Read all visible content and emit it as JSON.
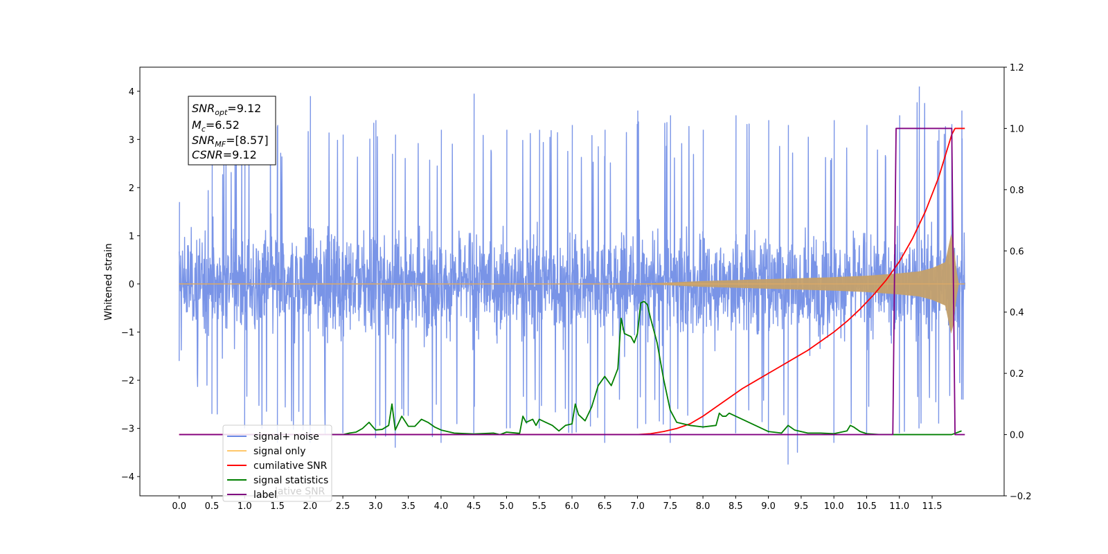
{
  "chart_data": {
    "type": "line",
    "title": "",
    "xlabel": "",
    "ylabel": "Whitened strain",
    "xlim": [
      -0.6,
      12.6
    ],
    "ylim": [
      -4.4,
      4.5
    ],
    "y2lim": [
      -0.2,
      1.2
    ],
    "x_ticks": [
      "0.0",
      "0.5",
      "1.0",
      "1.5",
      "2.0",
      "2.5",
      "3.0",
      "3.5",
      "4.0",
      "4.5",
      "5.0",
      "5.5",
      "6.0",
      "6.5",
      "7.0",
      "7.5",
      "8.0",
      "8.5",
      "9.0",
      "9.5",
      "10.0",
      "10.5",
      "11.0",
      "11.5"
    ],
    "y_ticks": [
      "4",
      "3",
      "2",
      "1",
      "0",
      "−1",
      "−2",
      "−3",
      "−4"
    ],
    "y2_ticks": [
      "1.2",
      "1.0",
      "0.8",
      "0.6",
      "0.4",
      "0.2",
      "0.0",
      "−0.2"
    ],
    "grid": false,
    "legend_position": "lower-left",
    "info_box": {
      "line1_main": "SNR",
      "line1_sub": "opt",
      "line1_value": "=9.12",
      "line2_main": "M",
      "line2_sub": "c",
      "line2_value": "=6.52",
      "line3_main": "SNR",
      "line3_sub": "MF",
      "line3_value": "=[8.57]",
      "line4_main": "CSNR",
      "line4_value": "=9.12"
    },
    "legend": [
      {
        "label": "signal+ noise",
        "color": "#6a88e4"
      },
      {
        "label": "signal only",
        "color": "#ffc76a"
      },
      {
        "label": "cumilative SNR",
        "color": "#ff0000"
      },
      {
        "label": "signal statistics",
        "color": "#007f00"
      },
      {
        "label": "label",
        "color": "#800080"
      }
    ],
    "legend_ghost_text": "lative SNR",
    "series": [
      {
        "name": "signal+ noise",
        "axis": "left",
        "color": "#6a88e4",
        "t_range": [
          0.0,
          12.0
        ],
        "envelope_peaks": [
          [
            0.0,
            1.7,
            -1.6
          ],
          [
            0.5,
            2.6,
            -2.7
          ],
          [
            1.0,
            3.2,
            -3.0
          ],
          [
            1.5,
            3.3,
            -3.3
          ],
          [
            2.0,
            3.9,
            -3.3
          ],
          [
            2.5,
            3.1,
            -3.1
          ],
          [
            3.0,
            3.4,
            -3.2
          ],
          [
            3.3,
            3.1,
            -3.4
          ],
          [
            4.0,
            3.2,
            -3.3
          ],
          [
            4.5,
            3.95,
            -3.1
          ],
          [
            5.0,
            3.2,
            -3.0
          ],
          [
            5.5,
            3.2,
            -3.0
          ],
          [
            6.0,
            3.3,
            -3.1
          ],
          [
            6.5,
            3.2,
            -3.3
          ],
          [
            7.0,
            3.6,
            -3.0
          ],
          [
            7.5,
            3.5,
            -3.3
          ],
          [
            8.0,
            3.2,
            -3.0
          ],
          [
            8.5,
            3.5,
            -3.1
          ],
          [
            9.0,
            3.4,
            -3.1
          ],
          [
            9.3,
            3.3,
            -3.75
          ],
          [
            10.0,
            3.4,
            -3.3
          ],
          [
            10.5,
            3.3,
            -3.1
          ],
          [
            11.0,
            3.5,
            -3.1
          ],
          [
            11.3,
            4.1,
            -3.0
          ],
          [
            11.6,
            3.2,
            -2.9
          ],
          [
            11.95,
            3.6,
            -2.4
          ]
        ]
      },
      {
        "name": "signal only",
        "axis": "left",
        "color": "#ffc76a",
        "t": [
          0,
          7.0,
          7.5,
          8.0,
          8.5,
          9.0,
          9.5,
          10.0,
          10.5,
          11.0,
          11.3,
          11.5,
          11.7,
          11.8,
          11.9,
          12.0
        ],
        "amplitude": [
          0,
          0.0,
          0.03,
          0.06,
          0.08,
          0.1,
          0.12,
          0.14,
          0.17,
          0.22,
          0.26,
          0.33,
          0.45,
          1.1,
          0.0,
          0.0
        ]
      },
      {
        "name": "cumilative SNR",
        "axis": "right",
        "color": "#ff0000",
        "x": [
          0.0,
          7.0,
          7.2,
          7.4,
          7.6,
          7.8,
          8.0,
          8.2,
          8.4,
          8.6,
          8.8,
          9.0,
          9.2,
          9.4,
          9.6,
          9.8,
          10.0,
          10.2,
          10.4,
          10.6,
          10.8,
          11.0,
          11.2,
          11.4,
          11.6,
          11.7,
          11.8,
          11.85,
          12.0
        ],
        "y": [
          0.0,
          0.0,
          0.003,
          0.01,
          0.02,
          0.035,
          0.06,
          0.09,
          0.12,
          0.15,
          0.175,
          0.2,
          0.225,
          0.25,
          0.275,
          0.305,
          0.335,
          0.37,
          0.41,
          0.455,
          0.505,
          0.565,
          0.64,
          0.73,
          0.84,
          0.91,
          0.98,
          1.0,
          1.0
        ]
      },
      {
        "name": "signal statistics",
        "axis": "right",
        "color": "#007f00",
        "x": [
          2.3,
          2.5,
          2.6,
          2.7,
          2.8,
          2.9,
          3.0,
          3.1,
          3.2,
          3.25,
          3.3,
          3.4,
          3.5,
          3.6,
          3.7,
          3.8,
          3.9,
          4.0,
          4.2,
          4.5,
          4.8,
          4.9,
          5.0,
          5.1,
          5.2,
          5.25,
          5.3,
          5.4,
          5.45,
          5.5,
          5.6,
          5.7,
          5.8,
          5.9,
          6.0,
          6.05,
          6.1,
          6.2,
          6.3,
          6.4,
          6.5,
          6.6,
          6.7,
          6.75,
          6.8,
          6.9,
          6.95,
          7.0,
          7.05,
          7.1,
          7.15,
          7.2,
          7.3,
          7.4,
          7.5,
          7.6,
          7.8,
          8.0,
          8.2,
          8.25,
          8.3,
          8.35,
          8.4,
          8.5,
          8.6,
          8.8,
          9.0,
          9.2,
          9.3,
          9.4,
          9.6,
          9.8,
          10.0,
          10.2,
          10.25,
          10.3,
          10.4,
          10.5,
          10.7,
          11.0,
          11.5,
          11.8,
          11.95
        ],
        "y": [
          0.0,
          0.0,
          0.005,
          0.008,
          0.02,
          0.04,
          0.015,
          0.017,
          0.03,
          0.1,
          0.015,
          0.06,
          0.027,
          0.027,
          0.05,
          0.04,
          0.025,
          0.015,
          0.005,
          0.002,
          0.005,
          0.0,
          0.008,
          0.006,
          0.004,
          0.06,
          0.04,
          0.05,
          0.03,
          0.05,
          0.04,
          0.03,
          0.012,
          0.03,
          0.035,
          0.1,
          0.065,
          0.045,
          0.09,
          0.16,
          0.19,
          0.16,
          0.215,
          0.38,
          0.33,
          0.32,
          0.3,
          0.33,
          0.43,
          0.435,
          0.425,
          0.38,
          0.3,
          0.18,
          0.08,
          0.04,
          0.03,
          0.025,
          0.03,
          0.07,
          0.06,
          0.06,
          0.07,
          0.06,
          0.05,
          0.03,
          0.01,
          0.005,
          0.03,
          0.015,
          0.005,
          0.005,
          0.003,
          0.012,
          0.03,
          0.025,
          0.01,
          0.003,
          0.0,
          0.0,
          0.0,
          0.0,
          0.012
        ]
      },
      {
        "name": "label",
        "axis": "right",
        "color": "#800080",
        "x": [
          0.0,
          10.9,
          10.95,
          11.8,
          11.85,
          12.0
        ],
        "y": [
          0.0,
          0.0,
          1.0,
          1.0,
          0.0,
          0.0
        ]
      }
    ]
  }
}
